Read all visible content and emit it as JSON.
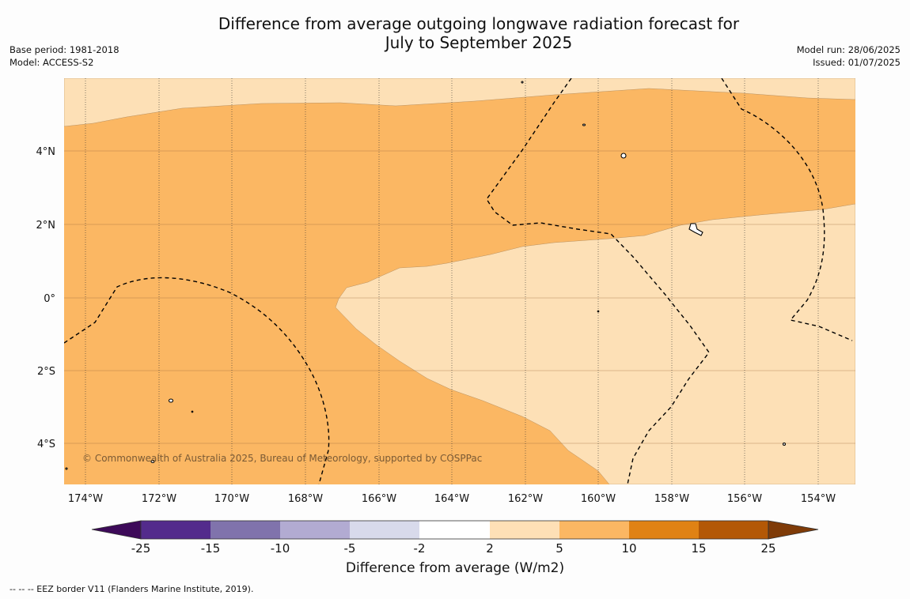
{
  "title_line1": "Difference from average outgoing longwave radiation forecast for",
  "title_line2": "July to September 2025",
  "base_period": "Base period: 1981-2018",
  "model": "Model: ACCESS-S2",
  "model_run": "Model run: 28/06/2025",
  "issued": "Issued: 01/07/2025",
  "copyright": "© Commonwealth of Australia 2025, Bureau of Meteorology, supported by COSPPac",
  "colorbar": {
    "label": "Difference from average (W/m2)",
    "ticks": [
      "-25",
      "-15",
      "-10",
      "-5",
      "-2",
      "2",
      "5",
      "10",
      "15",
      "25"
    ],
    "colors": [
      "#3d0a59",
      "#532b8c",
      "#8073ac",
      "#b2abd2",
      "#d8daeb",
      "#ffffff",
      "#fee0b6",
      "#fbb763",
      "#e08214",
      "#b35806",
      "#7f3b08"
    ]
  },
  "footer": "--  --  -- EEZ border V11 (Flanders Marine Institute, 2019).",
  "map": {
    "lat_labels": [
      "4°N",
      "2°N",
      "0°",
      "2°S",
      "4°S"
    ],
    "lon_labels": [
      "174°W",
      "172°W",
      "170°W",
      "168°W",
      "166°W",
      "164°W",
      "162°W",
      "160°W",
      "158°W",
      "156°W",
      "154°W"
    ],
    "fill_2_5": "#fde0b6",
    "fill_5_10": "#fbb763"
  }
}
